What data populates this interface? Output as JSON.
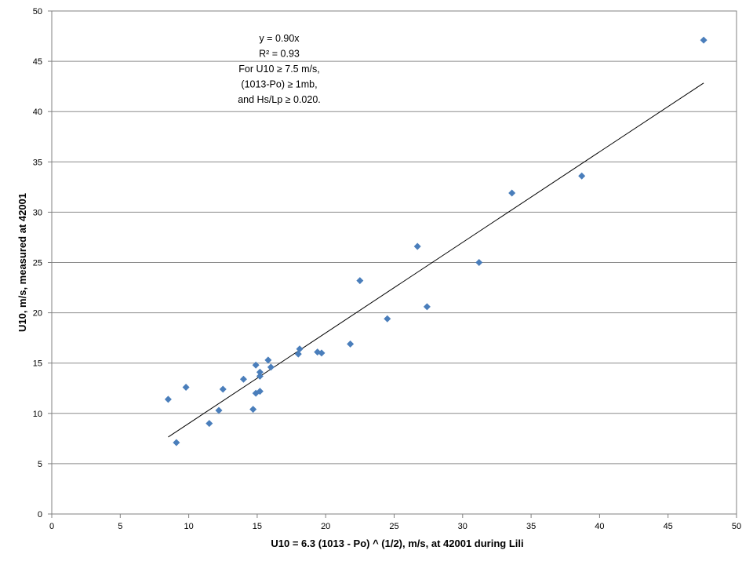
{
  "chart_data": {
    "type": "scatter",
    "xlabel": "U10 = 6.3 (1013 - Po) ^ (1/2), m/s, at 42001 during Lili",
    "ylabel": "U10, m/s, measured at 42001",
    "xlim": [
      0,
      50
    ],
    "ylim": [
      0,
      50
    ],
    "x_ticks": [
      0,
      5,
      10,
      15,
      20,
      25,
      30,
      35,
      40,
      45,
      50
    ],
    "y_ticks": [
      0,
      5,
      10,
      15,
      20,
      25,
      30,
      35,
      40,
      45,
      50
    ],
    "grid": "horizontal",
    "marker_color": "#4a7ebb",
    "trendline": {
      "slope": 0.9,
      "x_start": 8.5,
      "x_end": 47.6,
      "color": "#000000"
    },
    "annotation": [
      "y = 0.90x",
      "R² = 0.93",
      "For U10 ≥ 7.5 m/s,",
      "(1013-Po) ≥ 1mb,",
      "and Hs/Lp ≥ 0.020."
    ],
    "points": [
      [
        8.5,
        11.4
      ],
      [
        9.1,
        7.1
      ],
      [
        9.8,
        12.6
      ],
      [
        11.5,
        9.0
      ],
      [
        12.2,
        10.3
      ],
      [
        12.5,
        12.4
      ],
      [
        14.0,
        13.4
      ],
      [
        14.7,
        10.4
      ],
      [
        14.9,
        12.0
      ],
      [
        14.9,
        14.8
      ],
      [
        15.2,
        12.2
      ],
      [
        15.2,
        14.1
      ],
      [
        15.2,
        13.7
      ],
      [
        15.8,
        15.3
      ],
      [
        16.0,
        14.6
      ],
      [
        18.0,
        15.9
      ],
      [
        18.1,
        16.4
      ],
      [
        19.4,
        16.1
      ],
      [
        19.7,
        16.0
      ],
      [
        21.8,
        16.9
      ],
      [
        22.5,
        23.2
      ],
      [
        24.5,
        19.4
      ],
      [
        26.7,
        26.6
      ],
      [
        27.4,
        20.6
      ],
      [
        31.2,
        25.0
      ],
      [
        33.6,
        31.9
      ],
      [
        38.7,
        33.6
      ],
      [
        47.6,
        47.1
      ]
    ]
  }
}
